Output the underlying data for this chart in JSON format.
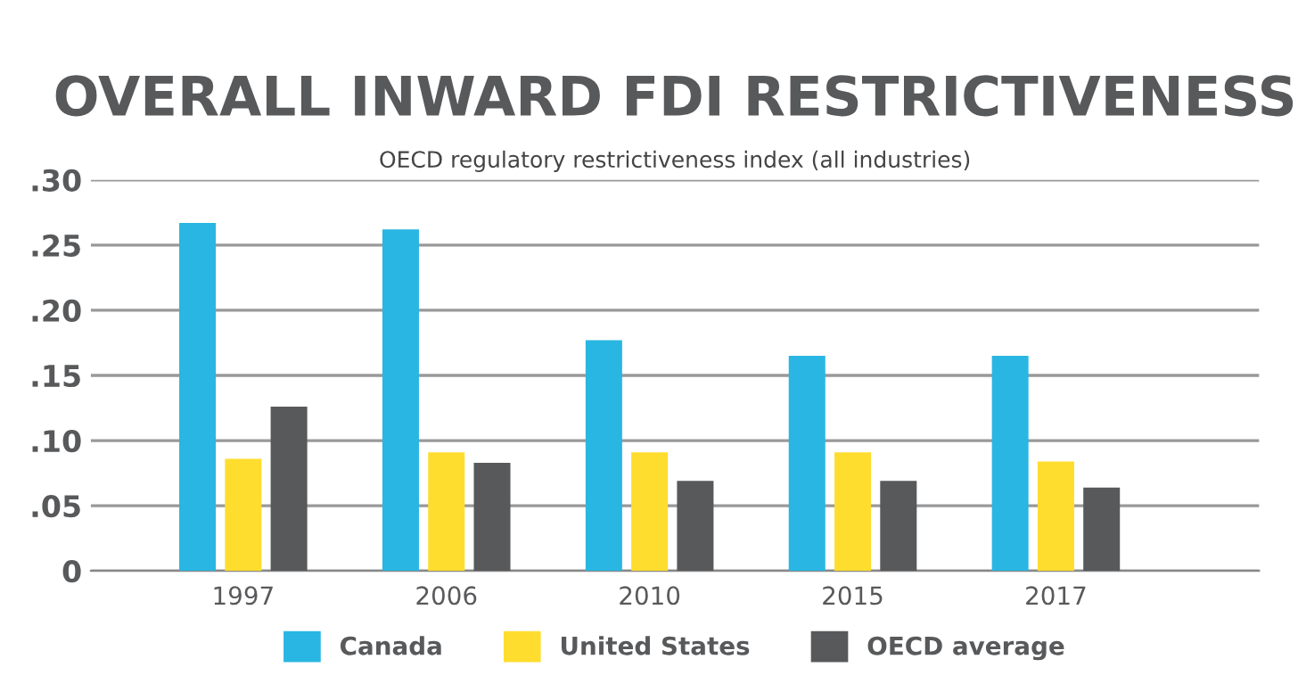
{
  "chart_data": {
    "type": "bar",
    "title": "OVERALL INWARD FDI RESTRICTIVENESS",
    "subtitle": "OECD regulatory restrictiveness index (all industries)",
    "categories": [
      "1997",
      "2006",
      "2010",
      "2015",
      "2017"
    ],
    "series": [
      {
        "name": "Canada",
        "color": "#29b6e2",
        "values": [
          0.267,
          0.262,
          0.177,
          0.165,
          0.165
        ]
      },
      {
        "name": "United States",
        "color": "#ffdd2e",
        "values": [
          0.086,
          0.091,
          0.091,
          0.091,
          0.084
        ]
      },
      {
        "name": "OECD average",
        "color": "#58595b",
        "values": [
          0.126,
          0.083,
          0.069,
          0.069,
          0.064
        ]
      }
    ],
    "ylim": [
      0,
      0.3
    ],
    "yticks": [
      {
        "value": 0,
        "label": "0"
      },
      {
        "value": 0.05,
        "label": ".05"
      },
      {
        "value": 0.1,
        "label": ".10"
      },
      {
        "value": 0.15,
        "label": ".15"
      },
      {
        "value": 0.2,
        "label": ".20"
      },
      {
        "value": 0.25,
        "label": ".25"
      },
      {
        "value": 0.3,
        "label": ".30"
      }
    ],
    "grid": "y",
    "legend": "bottom"
  }
}
